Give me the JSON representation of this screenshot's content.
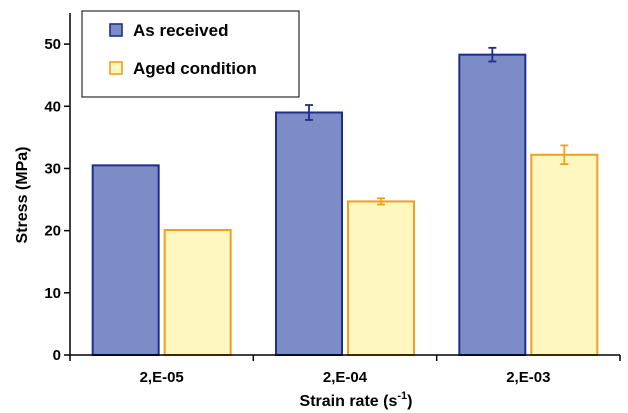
{
  "chart_data": {
    "type": "bar",
    "categories": [
      "2,E-05",
      "2,E-04",
      "2,E-03"
    ],
    "series": [
      {
        "name": "As received",
        "values": [
          30.5,
          39.0,
          48.3
        ],
        "errors": [
          0,
          1.2,
          1.1
        ],
        "fill": "#7b8cc6",
        "stroke": "#1f2d8c"
      },
      {
        "name": "Aged condition",
        "values": [
          20.1,
          24.7,
          32.2
        ],
        "errors": [
          0,
          0.5,
          1.5
        ],
        "fill": "#fff7bf",
        "stroke": "#f0a020"
      }
    ],
    "xlabel": "Strain rate (s",
    "xlabel_sup": "-1",
    "xlabel_suffix": ")",
    "ylabel": "Stress (MPa)",
    "ylim": [
      0,
      55
    ],
    "yticks": [
      "0",
      "10",
      "20",
      "30",
      "40",
      "50"
    ],
    "legend": "top-left",
    "grid": false
  }
}
